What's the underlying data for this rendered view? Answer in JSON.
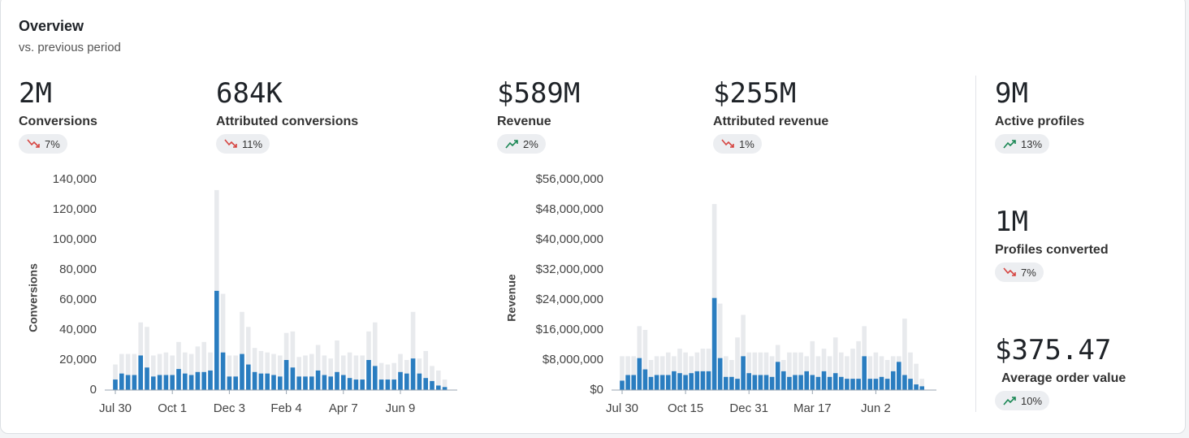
{
  "header": {
    "title": "Overview",
    "subtitle": "vs. previous period"
  },
  "metrics": [
    {
      "value": "2M",
      "label": "Conversions",
      "change": "7%",
      "trend": "down"
    },
    {
      "value": "684K",
      "label": "Attributed conversions",
      "change": "11%",
      "trend": "down"
    },
    {
      "value": "$589M",
      "label": "Revenue",
      "change": "2%",
      "trend": "up"
    },
    {
      "value": "$255M",
      "label": "Attributed revenue",
      "change": "1%",
      "trend": "down"
    },
    {
      "value": "9M",
      "label": "Active profiles",
      "change": "13%",
      "trend": "up"
    },
    {
      "value": "1M",
      "label": "Profiles converted",
      "change": "7%",
      "trend": "down"
    },
    {
      "value": "$375.47",
      "label": "Average order value",
      "change": "10%",
      "trend": "up"
    }
  ],
  "chart_data": [
    {
      "type": "bar",
      "y_label": "Conversions",
      "categories": [
        "Jul 30",
        null,
        null,
        null,
        null,
        null,
        null,
        null,
        null,
        "Oct 1",
        null,
        null,
        null,
        null,
        null,
        null,
        null,
        null,
        "Dec 3",
        null,
        null,
        null,
        null,
        null,
        null,
        null,
        null,
        "Feb 4",
        null,
        null,
        null,
        null,
        null,
        null,
        null,
        null,
        "Apr 7",
        null,
        null,
        null,
        null,
        null,
        null,
        null,
        null,
        "Jun 9",
        null,
        null,
        null,
        null,
        null,
        null,
        null
      ],
      "series": [
        {
          "color": "#e8eaed",
          "values": [
            17000,
            24000,
            24000,
            24000,
            45000,
            42000,
            23000,
            24000,
            25000,
            23000,
            32000,
            25000,
            24000,
            29000,
            32000,
            25000,
            133000,
            64000,
            23000,
            23000,
            52000,
            42000,
            28000,
            26000,
            25000,
            24000,
            23000,
            38000,
            39000,
            22000,
            23000,
            24000,
            30000,
            23000,
            21000,
            33000,
            23000,
            25000,
            23000,
            23000,
            39000,
            45000,
            18000,
            17000,
            18000,
            24000,
            20000,
            52000,
            21000,
            26000,
            16000,
            13000,
            7000
          ]
        },
        {
          "color": "#2a7dc0",
          "values": [
            7000,
            11000,
            10000,
            10000,
            23000,
            15000,
            9000,
            10000,
            10000,
            10000,
            14000,
            11000,
            10000,
            12000,
            12000,
            13000,
            66000,
            25000,
            9000,
            9000,
            24000,
            17000,
            12000,
            11000,
            11000,
            10000,
            9000,
            20000,
            15000,
            9000,
            9000,
            9000,
            13000,
            10000,
            9000,
            12000,
            10000,
            8000,
            7000,
            7000,
            20000,
            16000,
            7000,
            7000,
            7000,
            12000,
            11000,
            21000,
            11000,
            8000,
            6000,
            3000,
            2000
          ]
        }
      ],
      "ylim": [
        0,
        140000
      ],
      "yticks": [
        0,
        {
          "value": 20000,
          "label": "20,000"
        },
        {
          "value": 40000,
          "label": "40,000"
        },
        {
          "value": 60000,
          "label": "60,000"
        },
        {
          "value": 80000,
          "label": "80,000"
        },
        {
          "value": 100000,
          "label": "100,000"
        },
        {
          "value": 120000,
          "label": "120,000"
        },
        {
          "value": 140000,
          "label": "140,000"
        }
      ]
    },
    {
      "type": "bar",
      "y_label": "Revenue",
      "categories": [
        "Jul 30",
        null,
        null,
        null,
        null,
        null,
        null,
        null,
        null,
        null,
        null,
        "Oct 15",
        null,
        null,
        null,
        null,
        null,
        null,
        null,
        null,
        null,
        null,
        "Dec 31",
        null,
        null,
        null,
        null,
        null,
        null,
        null,
        null,
        null,
        null,
        "Mar 17",
        null,
        null,
        null,
        null,
        null,
        null,
        null,
        null,
        null,
        null,
        "Jun 2",
        null,
        null,
        null,
        null,
        null,
        null,
        null,
        null
      ],
      "series": [
        {
          "color": "#e8eaed",
          "values": [
            9000000,
            9000000,
            9000000,
            17000000,
            16000000,
            8000000,
            9000000,
            9000000,
            10000000,
            9000000,
            11000000,
            10000000,
            9000000,
            10000000,
            11000000,
            11000000,
            49500000,
            23000000,
            9000000,
            8000000,
            14000000,
            20000000,
            10000000,
            10000000,
            10000000,
            10000000,
            9000000,
            12000000,
            8000000,
            10000000,
            10000000,
            10000000,
            9000000,
            13000000,
            9000000,
            11000000,
            9000000,
            14000000,
            10000000,
            9000000,
            11000000,
            13000000,
            17000000,
            9000000,
            10000000,
            9000000,
            8000000,
            9000000,
            9000000,
            19000000,
            10000000,
            7000000,
            3000000
          ]
        },
        {
          "color": "#2a7dc0",
          "values": [
            2500000,
            4000000,
            4000000,
            8500000,
            5500000,
            3500000,
            4000000,
            4000000,
            4000000,
            5000000,
            4500000,
            4000000,
            4500000,
            5000000,
            5000000,
            5000000,
            24500000,
            8500000,
            3500000,
            3500000,
            3000000,
            9000000,
            4500000,
            4000000,
            4000000,
            4000000,
            3500000,
            7500000,
            5000000,
            3500000,
            4000000,
            4000000,
            5000000,
            4000000,
            3500000,
            5000000,
            3500000,
            4500000,
            3500000,
            3000000,
            3000000,
            3000000,
            9000000,
            3000000,
            3000000,
            3500000,
            3000000,
            5000000,
            7500000,
            4000000,
            3000000,
            1500000,
            1000000
          ]
        }
      ],
      "ylim": [
        0,
        56000000
      ],
      "yticks": [
        {
          "value": 0,
          "label": "$0"
        },
        {
          "value": 8000000,
          "label": "$8,000,000"
        },
        {
          "value": 16000000,
          "label": "$16,000,000"
        },
        {
          "value": 24000000,
          "label": "$24,000,000"
        },
        {
          "value": 32000000,
          "label": "$32,000,000"
        },
        {
          "value": 40000000,
          "label": "$40,000,000"
        },
        {
          "value": 48000000,
          "label": "$48,000,000"
        },
        {
          "value": 56000000,
          "label": "$56,000,000"
        }
      ]
    }
  ]
}
